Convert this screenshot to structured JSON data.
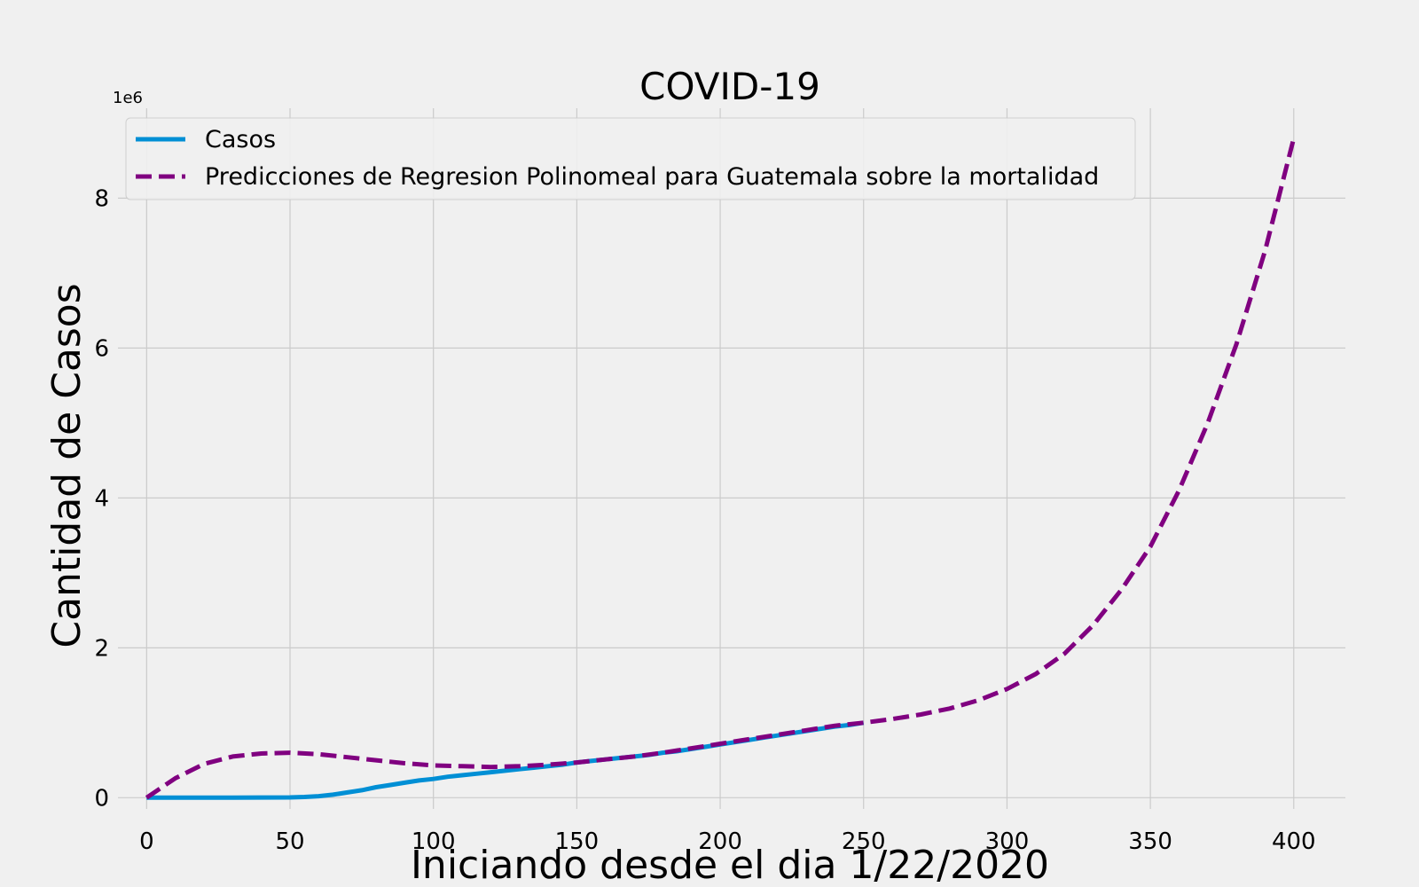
{
  "chart_data": {
    "type": "line",
    "title": "COVID-19",
    "xlabel": "Iniciando desde el dia 1/22/2020",
    "ylabel": "Cantidad de Casos",
    "y_offset_label": "1e6",
    "xlim": [
      -10,
      418
    ],
    "ylim": [
      -0.15,
      9.2
    ],
    "y_scale_factor": 1000000,
    "x_ticks": [
      0,
      50,
      100,
      150,
      200,
      250,
      300,
      350,
      400
    ],
    "y_ticks": [
      0,
      2,
      4,
      6,
      8
    ],
    "grid": true,
    "legend_position": "top-left",
    "colors": {
      "casos": "#008fd5",
      "prediccion": "#800080",
      "background": "#f0f0f0",
      "grid": "#cbcbcb"
    },
    "series": [
      {
        "name": "Casos",
        "style": "solid",
        "x": [
          0,
          10,
          20,
          30,
          40,
          50,
          55,
          60,
          65,
          70,
          75,
          80,
          85,
          90,
          95,
          100,
          105,
          110,
          115,
          120,
          125,
          130,
          135,
          140,
          145,
          150,
          155,
          160,
          165,
          170,
          175,
          180,
          185,
          190,
          195,
          200,
          205,
          210,
          215,
          220,
          225,
          230,
          235,
          240,
          245,
          250
        ],
        "values": [
          0,
          0,
          0,
          0.002,
          0.003,
          0.004,
          0.01,
          0.02,
          0.04,
          0.07,
          0.1,
          0.14,
          0.17,
          0.2,
          0.23,
          0.25,
          0.28,
          0.3,
          0.32,
          0.34,
          0.36,
          0.38,
          0.4,
          0.42,
          0.44,
          0.47,
          0.49,
          0.51,
          0.53,
          0.55,
          0.57,
          0.6,
          0.62,
          0.65,
          0.68,
          0.71,
          0.74,
          0.77,
          0.8,
          0.83,
          0.86,
          0.89,
          0.92,
          0.95,
          0.97,
          1.0
        ]
      },
      {
        "name": "Predicciones de Regresion Polinomeal para Guatemala sobre la mortalidad",
        "style": "dashed",
        "x": [
          0,
          10,
          20,
          30,
          40,
          50,
          60,
          70,
          80,
          90,
          100,
          110,
          120,
          130,
          140,
          150,
          160,
          170,
          180,
          190,
          200,
          210,
          220,
          230,
          240,
          250,
          260,
          270,
          280,
          290,
          300,
          310,
          320,
          330,
          340,
          350,
          360,
          370,
          380,
          390,
          400
        ],
        "values": [
          0,
          0.26,
          0.45,
          0.55,
          0.59,
          0.6,
          0.58,
          0.54,
          0.5,
          0.46,
          0.43,
          0.42,
          0.41,
          0.42,
          0.44,
          0.47,
          0.51,
          0.55,
          0.6,
          0.66,
          0.72,
          0.78,
          0.84,
          0.9,
          0.96,
          1.0,
          1.05,
          1.11,
          1.19,
          1.3,
          1.45,
          1.65,
          1.92,
          2.3,
          2.78,
          3.35,
          4.1,
          5.0,
          6.05,
          7.3,
          8.8
        ]
      }
    ]
  }
}
